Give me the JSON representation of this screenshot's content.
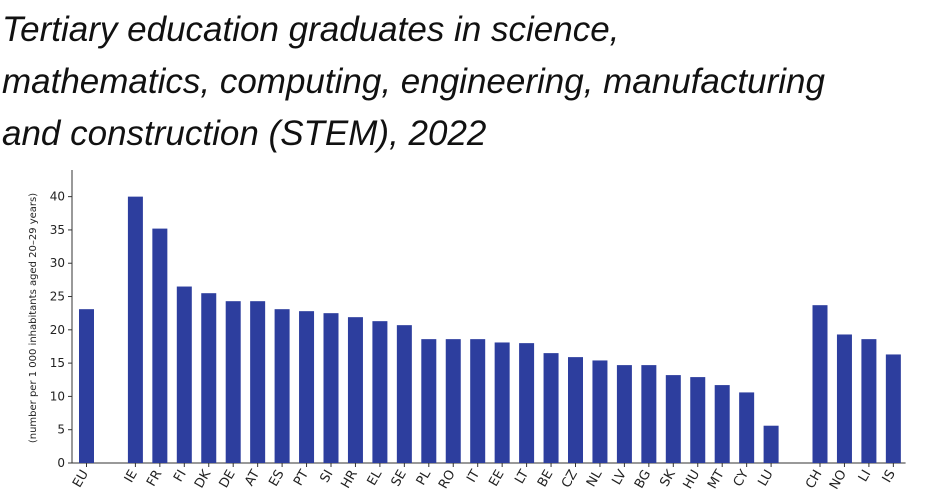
{
  "chart_data": {
    "type": "bar",
    "title_lines": [
      "Tertiary education graduates in science,",
      "mathematics, computing, engineering, manufacturing",
      "and construction (STEM), 2022"
    ],
    "ylabel": "(number per 1 000 inhabitants aged 20–29 years)",
    "xlabel": "",
    "ylim": [
      0,
      44
    ],
    "yticks": [
      0,
      5,
      10,
      15,
      20,
      25,
      30,
      35,
      40
    ],
    "grid": false,
    "legend": "none",
    "bar_color": "#2d3e9e",
    "categories": [
      "EU",
      "",
      "IE",
      "FR",
      "FI",
      "DK",
      "DE",
      "AT",
      "ES",
      "PT",
      "SI",
      "HR",
      "EL",
      "SE",
      "PL",
      "RO",
      "IT",
      "EE",
      "LT",
      "BE",
      "CZ",
      "NL",
      "LV",
      "BG",
      "SK",
      "HU",
      "MT",
      "CY",
      "LU",
      "",
      "CH",
      "NO",
      "LI",
      "IS"
    ],
    "values": [
      23.1,
      null,
      40.0,
      35.2,
      26.5,
      25.5,
      24.3,
      24.3,
      23.1,
      22.8,
      22.5,
      21.9,
      21.3,
      20.7,
      18.6,
      18.6,
      18.6,
      18.1,
      18.0,
      16.5,
      15.9,
      15.4,
      14.7,
      14.7,
      13.2,
      12.9,
      11.7,
      10.6,
      5.6,
      null,
      23.7,
      19.3,
      18.6,
      16.3
    ]
  }
}
